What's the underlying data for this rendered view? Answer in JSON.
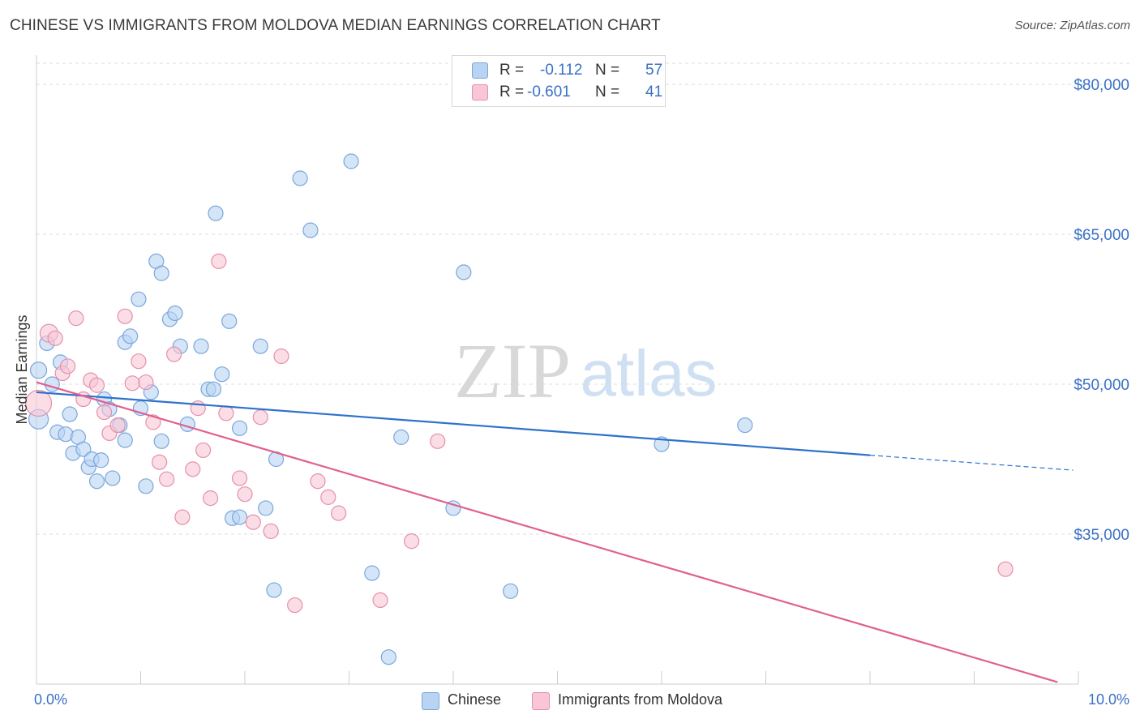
{
  "title": "CHINESE VS IMMIGRANTS FROM MOLDOVA MEDIAN EARNINGS CORRELATION CHART",
  "source": "Source: ZipAtlas.com",
  "watermark": {
    "zip": "ZIP",
    "atlas": "atlas"
  },
  "legend_top": {
    "rows": [
      {
        "r_label": "R =",
        "r_value": "-0.112",
        "n_label": "N =",
        "n_value": "57"
      },
      {
        "r_label": "R =",
        "r_value": "-0.601",
        "n_label": "N =",
        "n_value": "41"
      }
    ]
  },
  "colors": {
    "chinese_fill": "#b9d3f3",
    "chinese_stroke": "#7aa6dc",
    "chinese_line": "#2e72cc",
    "moldova_fill": "#f8c6d6",
    "moldova_stroke": "#e68fab",
    "moldova_line": "#e0608e",
    "axis_label": "#3a70c6",
    "grid": "#dddddd"
  },
  "chart_data": {
    "type": "scatter",
    "title": "CHINESE VS IMMIGRANTS FROM MOLDOVA MEDIAN EARNINGS CORRELATION CHART",
    "xlabel": "",
    "ylabel": "Median Earnings",
    "xlim": [
      0,
      10
    ],
    "ylim": [
      20000,
      82000
    ],
    "x_tick_labels": [
      "0.0%",
      "10.0%"
    ],
    "y_ticks": [
      35000,
      50000,
      65000,
      80000
    ],
    "y_tick_labels": [
      "$35,000",
      "$50,000",
      "$65,000",
      "$80,000"
    ],
    "grid": true,
    "legend_position": "bottom",
    "series": [
      {
        "name": "Chinese",
        "color": "#b9d3f3",
        "r": -0.112,
        "n": 57,
        "trend": {
          "x": [
            0,
            8
          ],
          "y": [
            49200,
            42900
          ],
          "dashed_to_x": 9.95,
          "dashed_to_y": 41400
        },
        "points": [
          [
            0.02,
            46500,
            12
          ],
          [
            0.02,
            51400,
            10
          ],
          [
            0.1,
            54100,
            9
          ],
          [
            0.15,
            50000,
            9
          ],
          [
            0.2,
            45200,
            9
          ],
          [
            0.23,
            52200,
            9
          ],
          [
            0.28,
            45000,
            9
          ],
          [
            0.32,
            47000,
            9
          ],
          [
            0.35,
            43100,
            9
          ],
          [
            0.4,
            44700,
            9
          ],
          [
            0.45,
            43500,
            9
          ],
          [
            0.5,
            41700,
            9
          ],
          [
            0.53,
            42500,
            9
          ],
          [
            0.58,
            40300,
            9
          ],
          [
            0.62,
            42400,
            9
          ],
          [
            0.65,
            48500,
            9
          ],
          [
            0.7,
            47500,
            9
          ],
          [
            0.73,
            40600,
            9
          ],
          [
            0.8,
            45900,
            9
          ],
          [
            0.85,
            54200,
            9
          ],
          [
            0.85,
            44400,
            9
          ],
          [
            0.9,
            54800,
            9
          ],
          [
            0.98,
            58500,
            9
          ],
          [
            1.0,
            47600,
            9
          ],
          [
            1.05,
            39800,
            9
          ],
          [
            1.1,
            49200,
            9
          ],
          [
            1.15,
            62300,
            9
          ],
          [
            1.2,
            61100,
            9
          ],
          [
            1.2,
            44300,
            9
          ],
          [
            1.28,
            56500,
            9
          ],
          [
            1.33,
            57100,
            9
          ],
          [
            1.38,
            53800,
            9
          ],
          [
            1.45,
            46000,
            9
          ],
          [
            1.58,
            53800,
            9
          ],
          [
            1.65,
            49500,
            9
          ],
          [
            1.7,
            49500,
            9
          ],
          [
            1.72,
            67100,
            9
          ],
          [
            1.78,
            51000,
            9
          ],
          [
            1.85,
            56300,
            9
          ],
          [
            1.88,
            36600,
            9
          ],
          [
            1.95,
            36700,
            9
          ],
          [
            1.95,
            45600,
            9
          ],
          [
            2.15,
            53800,
            9
          ],
          [
            2.2,
            37600,
            9
          ],
          [
            2.28,
            29400,
            9
          ],
          [
            2.3,
            42500,
            9
          ],
          [
            2.53,
            70600,
            9
          ],
          [
            2.63,
            65400,
            9
          ],
          [
            3.02,
            72300,
            9
          ],
          [
            3.22,
            31100,
            9
          ],
          [
            3.38,
            22700,
            9
          ],
          [
            3.5,
            44700,
            9
          ],
          [
            4.0,
            37600,
            9
          ],
          [
            4.1,
            61200,
            9
          ],
          [
            4.55,
            29300,
            9
          ],
          [
            6.0,
            44000,
            9
          ],
          [
            6.8,
            45900,
            9
          ]
        ]
      },
      {
        "name": "Immigrants from Moldova",
        "color": "#f8c6d6",
        "r": -0.601,
        "n": 41,
        "trend": {
          "x": [
            0,
            9.8
          ],
          "y": [
            50200,
            20200
          ]
        },
        "points": [
          [
            0.02,
            48100,
            16
          ],
          [
            0.12,
            55100,
            11
          ],
          [
            0.18,
            54600,
            9
          ],
          [
            0.25,
            51100,
            9
          ],
          [
            0.3,
            51800,
            9
          ],
          [
            0.38,
            56600,
            9
          ],
          [
            0.45,
            48500,
            9
          ],
          [
            0.52,
            50400,
            9
          ],
          [
            0.58,
            49900,
            9
          ],
          [
            0.65,
            47200,
            9
          ],
          [
            0.7,
            45100,
            9
          ],
          [
            0.78,
            45900,
            9
          ],
          [
            0.85,
            56800,
            9
          ],
          [
            0.92,
            50100,
            9
          ],
          [
            0.98,
            52300,
            9
          ],
          [
            1.05,
            50200,
            9
          ],
          [
            1.12,
            46200,
            9
          ],
          [
            1.18,
            42200,
            9
          ],
          [
            1.25,
            40500,
            9
          ],
          [
            1.32,
            53000,
            9
          ],
          [
            1.4,
            36700,
            9
          ],
          [
            1.5,
            41500,
            9
          ],
          [
            1.55,
            47600,
            9
          ],
          [
            1.6,
            43400,
            9
          ],
          [
            1.67,
            38600,
            9
          ],
          [
            1.75,
            62300,
            9
          ],
          [
            1.82,
            47100,
            9
          ],
          [
            1.95,
            40600,
            9
          ],
          [
            2.0,
            39000,
            9
          ],
          [
            2.08,
            36200,
            9
          ],
          [
            2.15,
            46700,
            9
          ],
          [
            2.25,
            35300,
            9
          ],
          [
            2.35,
            52800,
            9
          ],
          [
            2.48,
            27900,
            9
          ],
          [
            2.7,
            40300,
            9
          ],
          [
            2.8,
            38700,
            9
          ],
          [
            2.9,
            37100,
            9
          ],
          [
            3.3,
            28400,
            9
          ],
          [
            3.6,
            34300,
            9
          ],
          [
            3.85,
            44300,
            9
          ],
          [
            9.3,
            31500,
            9
          ]
        ]
      }
    ]
  }
}
